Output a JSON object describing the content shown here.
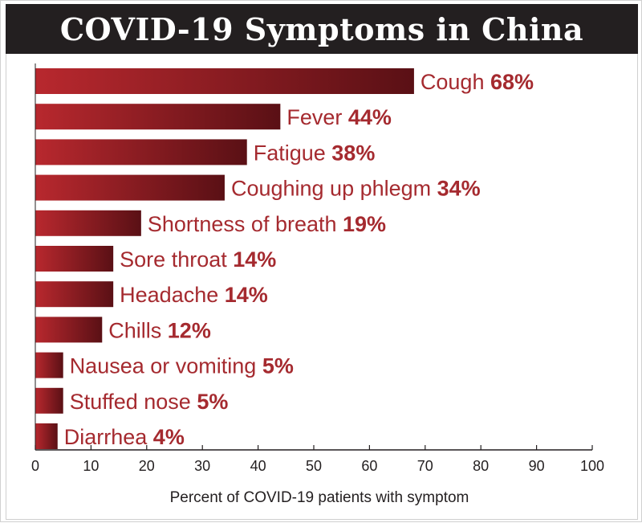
{
  "chart_data": {
    "type": "bar",
    "orientation": "horizontal",
    "title": "COVID-19 Symptoms in China",
    "xlabel": "Percent of COVID-19 patients with symptom",
    "ylabel": "",
    "xlim": [
      0,
      100
    ],
    "xticks": [
      0,
      10,
      20,
      30,
      40,
      50,
      60,
      70,
      80,
      90,
      100
    ],
    "grid": false,
    "categories": [
      "Cough",
      "Fever",
      "Fatigue",
      "Coughing up phlegm",
      "Shortness of breath",
      "Sore throat",
      "Headache",
      "Chills",
      "Nausea or vomiting",
      "Stuffed nose",
      "Diarrhea"
    ],
    "values": [
      68,
      44,
      38,
      34,
      19,
      14,
      14,
      12,
      5,
      5,
      4
    ],
    "value_labels": [
      "68%",
      "44%",
      "38%",
      "34%",
      "19%",
      "14%",
      "14%",
      "12%",
      "5%",
      "5%",
      "4%"
    ],
    "colors": {
      "bar_light": "#b8282e",
      "bar_dark": "#5a1015",
      "label": "#a52a2f",
      "title_bg": "#231f20",
      "title_text": "#ffffff"
    }
  }
}
